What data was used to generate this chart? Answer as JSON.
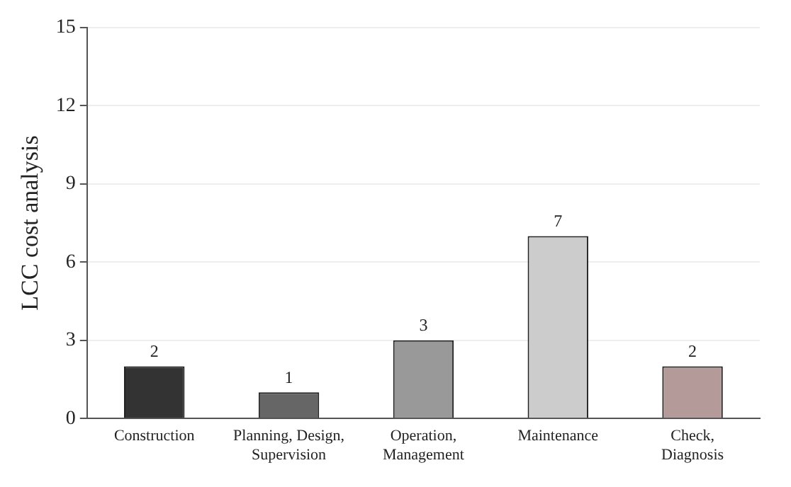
{
  "chart_data": {
    "type": "bar",
    "ylabel": "LCC cost analysis",
    "categories": [
      "Construction",
      "Planning, Design, Supervision",
      "Operation, Management",
      "Maintenance",
      "Check, Diagnosis"
    ],
    "values": [
      2,
      1,
      3,
      7,
      2
    ],
    "colors": [
      "#333333",
      "#666666",
      "#999999",
      "#cccccc",
      "#b59a9a"
    ],
    "ylim": [
      0,
      15
    ],
    "yticks": [
      0,
      3,
      6,
      9,
      12,
      15
    ],
    "grid": "y",
    "data_labels": true,
    "legend": false
  }
}
